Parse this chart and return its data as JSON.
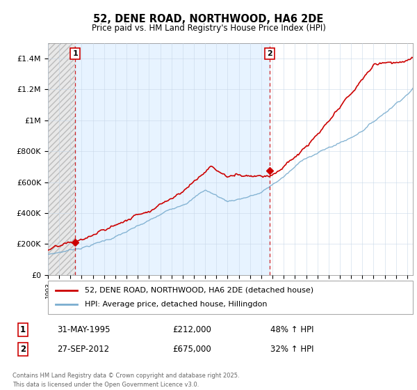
{
  "title": "52, DENE ROAD, NORTHWOOD, HA6 2DE",
  "subtitle": "Price paid vs. HM Land Registry's House Price Index (HPI)",
  "legend_line1": "52, DENE ROAD, NORTHWOOD, HA6 2DE (detached house)",
  "legend_line2": "HPI: Average price, detached house, Hillingdon",
  "sale1_label": "1",
  "sale1_date": "31-MAY-1995",
  "sale1_price": "£212,000",
  "sale1_hpi": "48% ↑ HPI",
  "sale2_label": "2",
  "sale2_date": "27-SEP-2012",
  "sale2_price": "£675,000",
  "sale2_hpi": "32% ↑ HPI",
  "footnote": "Contains HM Land Registry data © Crown copyright and database right 2025.\nThis data is licensed under the Open Government Licence v3.0.",
  "red_color": "#cc0000",
  "blue_color": "#7aadcf",
  "dashed_red": "#cc0000",
  "annotation_box_color": "#cc0000",
  "background_color": "#ffffff",
  "ylim": [
    0,
    1500000
  ],
  "yticks": [
    0,
    200000,
    400000,
    600000,
    800000,
    1000000,
    1200000,
    1400000
  ],
  "ytick_labels": [
    "£0",
    "£200K",
    "£400K",
    "£600K",
    "£800K",
    "£1M",
    "£1.2M",
    "£1.4M"
  ],
  "sale1_x": 1995.42,
  "sale2_x": 2012.75,
  "sale1_y": 212000,
  "sale2_y": 675000,
  "xmin": 1993,
  "xmax": 2025.5
}
